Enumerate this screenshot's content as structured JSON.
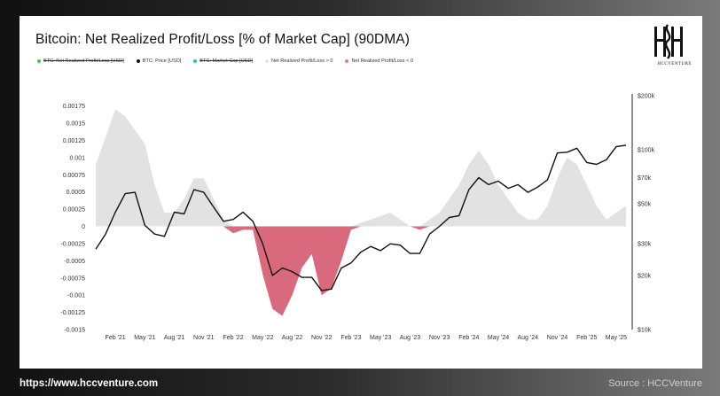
{
  "page": {
    "title": "Bitcoin: Net Realized Profit/Loss [% of Market Cap] (90DMA)",
    "logo_text": "HCCVENTURE",
    "footer_url": "https://www.hccventure.com",
    "footer_source": "Source : HCCVenture"
  },
  "legend": [
    {
      "label": "BTC: Net Realized Profit/Loss [USD]",
      "color": "#3cc94a",
      "struck": true
    },
    {
      "label": "BTC: Price [USD]",
      "color": "#111111",
      "struck": false
    },
    {
      "label": "BTC: Market Cap [USD]",
      "color": "#27c3b6",
      "struck": true
    },
    {
      "label": "Net Realized Profit/Loss > 0",
      "color": "#e6e6e6",
      "struck": false
    },
    {
      "label": "Net Realized Profit/Loss < 0",
      "color": "#e17f8e",
      "struck": false
    }
  ],
  "colors": {
    "positive": "#e2e2e2",
    "negative": "#d9697c",
    "price": "#111111",
    "axis": "#222222"
  },
  "chart_data": {
    "type": "area",
    "title": "Bitcoin: Net Realized Profit/Loss [% of Market Cap] (90DMA)",
    "x_ticks": [
      "Feb '21",
      "May '21",
      "Aug '21",
      "Nov '21",
      "Feb '22",
      "May '22",
      "Aug '22",
      "Nov '22",
      "Feb '23",
      "May '23",
      "Aug '23",
      "Nov '23",
      "Feb '24",
      "May '24",
      "Aug '24",
      "Nov '24",
      "Feb '25",
      "May '25"
    ],
    "y_left_ticks": [
      "0.00175",
      "0.0015",
      "0.00125",
      "0.001",
      "0.00075",
      "0.0005",
      "0.00025",
      "0",
      "-0.00025",
      "-0.0005",
      "-0.00075",
      "-0.001",
      "-0.00125",
      "-0.0015"
    ],
    "ylim_left": [
      -0.0015,
      0.0019
    ],
    "y_right_ticks": [
      "$200k",
      "$100k",
      "$70k",
      "$50k",
      "$30k",
      "$20k",
      "$10k"
    ],
    "y_right_values": [
      200000,
      100000,
      70000,
      50000,
      30000,
      20000,
      10000
    ],
    "ylim_right": [
      10000,
      200000
    ],
    "y_right_scale": "log",
    "series": [
      {
        "name": "Net Realized Profit/Loss",
        "x": [
          "2020-12",
          "2021-01",
          "2021-02",
          "2021-03",
          "2021-04",
          "2021-05",
          "2021-06",
          "2021-07",
          "2021-08",
          "2021-09",
          "2021-10",
          "2021-11",
          "2021-12",
          "2022-01",
          "2022-02",
          "2022-03",
          "2022-04",
          "2022-05",
          "2022-06",
          "2022-07",
          "2022-08",
          "2022-09",
          "2022-10",
          "2022-11",
          "2022-12",
          "2023-01",
          "2023-02",
          "2023-03",
          "2023-04",
          "2023-05",
          "2023-06",
          "2023-07",
          "2023-08",
          "2023-09",
          "2023-10",
          "2023-11",
          "2023-12",
          "2024-01",
          "2024-02",
          "2024-03",
          "2024-04",
          "2024-05",
          "2024-06",
          "2024-07",
          "2024-08",
          "2024-09",
          "2024-10",
          "2024-11",
          "2024-12",
          "2025-01",
          "2025-02",
          "2025-03",
          "2025-04",
          "2025-05",
          "2025-06"
        ],
        "values": [
          0.0009,
          0.0013,
          0.0017,
          0.0016,
          0.0014,
          0.0012,
          0.0006,
          0.0002,
          0.0002,
          0.0004,
          0.0007,
          0.0007,
          0.0004,
          0.0001,
          -0.0001,
          -5e-05,
          -5e-05,
          -0.0007,
          -0.0012,
          -0.0013,
          -0.001,
          -0.0006,
          -0.0004,
          -0.001,
          -0.0009,
          -0.0005,
          -5e-05,
          5e-05,
          0.0001,
          0.00015,
          0.0002,
          0.0001,
          0.0,
          -5e-05,
          0.0001,
          0.0002,
          0.0004,
          0.0006,
          0.0009,
          0.0011,
          0.0009,
          0.0006,
          0.0004,
          0.0002,
          0.0001,
          0.0001,
          0.0003,
          0.0007,
          0.001,
          0.0009,
          0.0006,
          0.0003,
          0.0001,
          0.0002,
          0.0003
        ]
      },
      {
        "name": "BTC: Price [USD]",
        "x": [
          "2020-12",
          "2021-01",
          "2021-02",
          "2021-03",
          "2021-04",
          "2021-05",
          "2021-06",
          "2021-07",
          "2021-08",
          "2021-09",
          "2021-10",
          "2021-11",
          "2021-12",
          "2022-01",
          "2022-02",
          "2022-03",
          "2022-04",
          "2022-05",
          "2022-06",
          "2022-07",
          "2022-08",
          "2022-09",
          "2022-10",
          "2022-11",
          "2022-12",
          "2023-01",
          "2023-02",
          "2023-03",
          "2023-04",
          "2023-05",
          "2023-06",
          "2023-07",
          "2023-08",
          "2023-09",
          "2023-10",
          "2023-11",
          "2023-12",
          "2024-01",
          "2024-02",
          "2024-03",
          "2024-04",
          "2024-05",
          "2024-06",
          "2024-07",
          "2024-08",
          "2024-09",
          "2024-10",
          "2024-11",
          "2024-12",
          "2025-01",
          "2025-02",
          "2025-03",
          "2025-04",
          "2025-05",
          "2025-06"
        ],
        "values": [
          28000,
          34000,
          45000,
          57000,
          58000,
          38000,
          34000,
          33000,
          45000,
          44000,
          60000,
          58000,
          48000,
          40000,
          41000,
          45000,
          40000,
          30000,
          20000,
          22000,
          21000,
          19500,
          19500,
          16500,
          16800,
          22000,
          23500,
          27000,
          29000,
          27500,
          30000,
          29500,
          26500,
          26500,
          34000,
          37500,
          42000,
          43000,
          60000,
          70000,
          64000,
          67000,
          61000,
          64000,
          58000,
          62000,
          68000,
          96000,
          97000,
          102000,
          85000,
          83000,
          88000,
          104000,
          106000
        ]
      }
    ]
  }
}
